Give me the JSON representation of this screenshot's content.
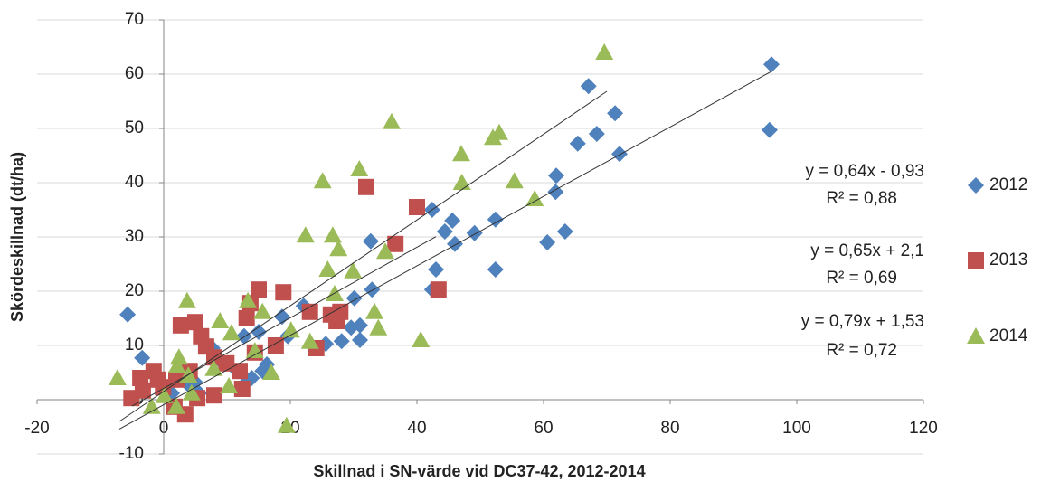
{
  "chart_data": {
    "type": "scatter",
    "x_label": "Skillnad i SN-värde vid DC37-42, 2012-2014",
    "y_label": "Skördeskillnad (dt/ha)",
    "xlim": [
      -20,
      120
    ],
    "xticks": [
      -20,
      0,
      20,
      40,
      60,
      80,
      100,
      120
    ],
    "ylim": [
      -10,
      70
    ],
    "yticks": [
      -10,
      0,
      10,
      20,
      30,
      40,
      50,
      60,
      70
    ],
    "grid": true,
    "legend": "right",
    "series": [
      {
        "name": "2012",
        "color": "#4f81bd",
        "marker": "diamond",
        "x": [
          -5.7,
          -3.4,
          96,
          95.7,
          67.1,
          65.4,
          68.4,
          71.3,
          72,
          62,
          61.9,
          63.4,
          60.6,
          52.4,
          52.4,
          49.1,
          45.6,
          44.4,
          46,
          42.4,
          43,
          42.4,
          32.7,
          32.9,
          30.1,
          31,
          31,
          29.6,
          28.1,
          25.6,
          22.1,
          19.6,
          18.7,
          16.3,
          15.6,
          13.9,
          12.7,
          11.6,
          15,
          12.7,
          4.9,
          5.6,
          3.9,
          1.3,
          9.1,
          7.7
        ],
        "y": [
          15.7,
          7.7,
          61.8,
          49.7,
          57.8,
          47.2,
          49,
          52.8,
          45.3,
          41.3,
          38.3,
          31,
          29,
          33.2,
          24,
          30.7,
          33,
          31,
          28.7,
          35,
          24,
          20.3,
          29.2,
          20.3,
          18.7,
          13.7,
          11,
          13.3,
          10.8,
          10.3,
          17.3,
          11.7,
          15.3,
          6.5,
          5.3,
          4,
          2.8,
          5.3,
          12.5,
          11.7,
          3.3,
          1.2,
          2.8,
          1.2,
          7,
          9.5
        ],
        "trendline": {
          "equation": "y = 0,64x - 0,93",
          "r2_label": "R² = 0,88",
          "slope": 0.64,
          "intercept": -0.93,
          "r2": 0.88,
          "xlim": [
            -7,
            96
          ]
        }
      },
      {
        "name": "2013",
        "color": "#c0504d",
        "marker": "square",
        "x": [
          32,
          40,
          36.6,
          43.4,
          15,
          18.9,
          23.1,
          27.9,
          27.3,
          26.4,
          24.1,
          17.7,
          14.4,
          13.1,
          13.7,
          2.7,
          5,
          5.9,
          6.7,
          8,
          9.9,
          12,
          12.4,
          8,
          4.1,
          2,
          -0.1,
          -1.6,
          -3.7,
          -5.1,
          -3.3,
          3.4,
          1.7,
          5.3,
          -0.9
        ],
        "y": [
          39.2,
          35.5,
          28.7,
          20.3,
          20.3,
          19.8,
          16.2,
          16.2,
          14.5,
          15.7,
          9.5,
          10,
          8.7,
          15,
          17.8,
          13.7,
          14.3,
          11.7,
          9.8,
          7.8,
          6.7,
          5.3,
          2,
          0.8,
          5.3,
          3.7,
          2.3,
          5.3,
          4,
          0.3,
          1.7,
          -2.7,
          -1.3,
          0.3,
          3.7
        ],
        "trendline": {
          "equation": "y = 0,65x + 2,1",
          "r2_label": "R² = 0,69",
          "slope": 0.65,
          "intercept": 2.1,
          "r2": 0.69,
          "xlim": [
            -5,
            43
          ]
        }
      },
      {
        "name": "2014",
        "color": "#9bbb59",
        "marker": "triangle",
        "x": [
          69.6,
          36,
          53,
          52,
          47,
          47.1,
          55.4,
          58.6,
          30.9,
          25.1,
          22.4,
          26.7,
          27.6,
          35,
          25.9,
          29.9,
          33.3,
          33.9,
          27,
          40.6,
          23.1,
          20.1,
          15.6,
          13.3,
          3.7,
          8.9,
          10.7,
          14.4,
          17,
          7.9,
          2.4,
          2.1,
          3.9,
          4.4,
          2,
          -1.9,
          -7.3,
          0.1,
          10.3,
          19.4
        ],
        "y": [
          64,
          51.2,
          49.2,
          48.3,
          45.3,
          40,
          40.3,
          37,
          42.5,
          40.3,
          30.3,
          30.3,
          27.8,
          27.3,
          24,
          23.7,
          16.2,
          13.2,
          19.5,
          11,
          10.7,
          12.8,
          16.2,
          18.2,
          18.2,
          14.5,
          12.3,
          9,
          5,
          5.7,
          7.8,
          6.2,
          4.5,
          1.2,
          -1.3,
          -1.3,
          4,
          0.7,
          2.5,
          -4.8
        ],
        "trendline": {
          "equation": "y = 0,79x + 1,53",
          "r2_label": "R² = 0,72",
          "slope": 0.79,
          "intercept": 1.53,
          "r2": 0.72,
          "xlim": [
            -7,
            70
          ]
        }
      }
    ]
  }
}
